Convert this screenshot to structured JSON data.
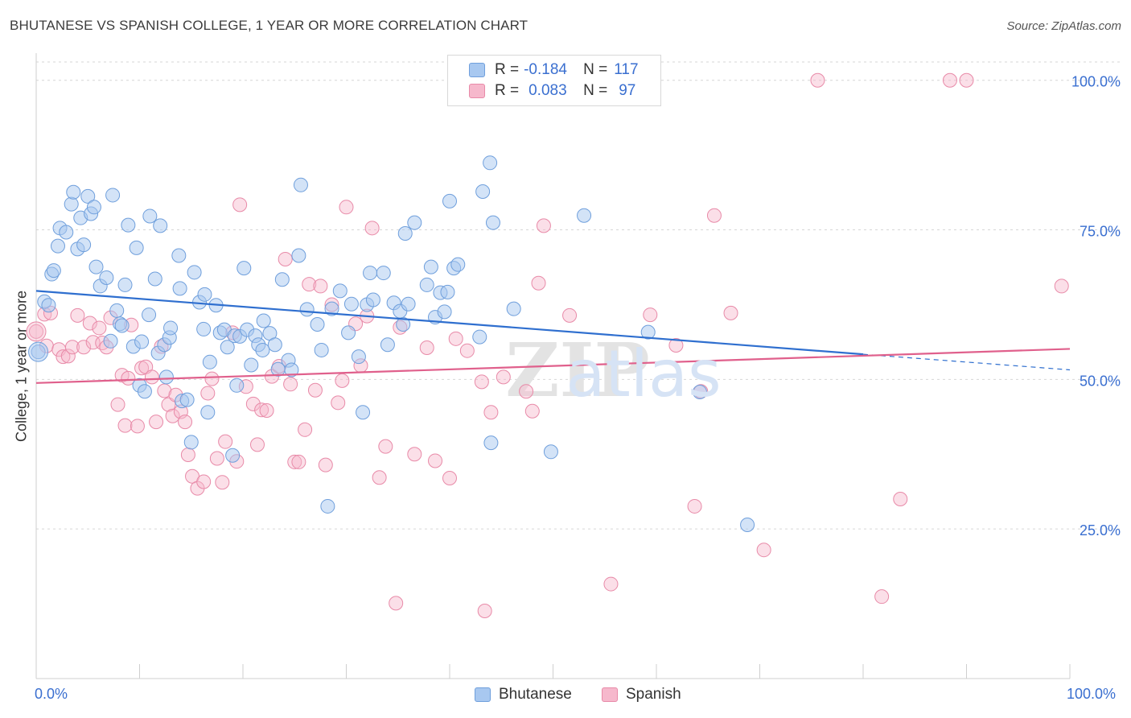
{
  "title": "BHUTANESE VS SPANISH COLLEGE, 1 YEAR OR MORE CORRELATION CHART",
  "source": "Source: ZipAtlas.com",
  "watermark": "ZIPatlas",
  "colors": {
    "blue_fill": "#a8c8f0",
    "blue_stroke": "#6f9fdc",
    "blue_line": "#2f6fcf",
    "pink_fill": "#f6b8cc",
    "pink_stroke": "#e88aa8",
    "pink_line": "#e0608c",
    "axis_text": "#3a6fd0",
    "grid": "#d6d6d6"
  },
  "legend_top": {
    "rows": [
      {
        "r_label": "R =",
        "r_value": "-0.184",
        "n_label": "N =",
        "n_value": "117"
      },
      {
        "r_label": "R =",
        "r_value": "0.083",
        "n_label": "N =",
        "n_value": "97"
      }
    ]
  },
  "legend_bottom": [
    "Bhutanese",
    "Spanish"
  ],
  "chart_data": {
    "type": "scatter",
    "title": "BHUTANESE VS SPANISH COLLEGE, 1 YEAR OR MORE CORRELATION CHART",
    "xlabel": "",
    "ylabel": "College, 1 year or more",
    "xlim": [
      0,
      100
    ],
    "ylim": [
      0,
      104
    ],
    "x_tick_labels": [
      "0.0%",
      "100.0%"
    ],
    "y_ticks": [
      25,
      50,
      75,
      100
    ],
    "y_tick_labels": [
      "25.0%",
      "50.0%",
      "75.0%",
      "100.0%"
    ],
    "grid": true,
    "legend_position": "top-center",
    "series": [
      {
        "name": "Bhutanese",
        "r": -0.184,
        "n": 117,
        "trend": {
          "x0": 0,
          "y0": 64.8,
          "x1": 80,
          "y1": 54.2,
          "dashed_to_x": 100,
          "dashed_to_y": 51.6
        },
        "points": [
          [
            0.2,
            54.6
          ],
          [
            0.8,
            63
          ],
          [
            1.2,
            62.4
          ],
          [
            1.5,
            67.6
          ],
          [
            1.7,
            68.2
          ],
          [
            2.1,
            72.3
          ],
          [
            2.3,
            75.3
          ],
          [
            2.9,
            74.6
          ],
          [
            3.4,
            79.3
          ],
          [
            3.6,
            81.3
          ],
          [
            4.0,
            71.8
          ],
          [
            4.3,
            77
          ],
          [
            4.6,
            72.5
          ],
          [
            5.0,
            80.6
          ],
          [
            5.3,
            77.7
          ],
          [
            5.6,
            78.8
          ],
          [
            5.8,
            68.8
          ],
          [
            6.2,
            65.6
          ],
          [
            6.8,
            67
          ],
          [
            7.2,
            56.4
          ],
          [
            7.4,
            80.8
          ],
          [
            7.8,
            61.5
          ],
          [
            8.1,
            59.3
          ],
          [
            8.3,
            59
          ],
          [
            8.6,
            65.8
          ],
          [
            8.9,
            75.8
          ],
          [
            9.4,
            55.5
          ],
          [
            9.7,
            72
          ],
          [
            10.0,
            49
          ],
          [
            10.2,
            56.3
          ],
          [
            10.5,
            48
          ],
          [
            10.9,
            60.8
          ],
          [
            11.0,
            77.3
          ],
          [
            11.5,
            66.8
          ],
          [
            11.8,
            54.4
          ],
          [
            12.0,
            75.7
          ],
          [
            12.4,
            55.8
          ],
          [
            12.6,
            50.4
          ],
          [
            12.9,
            57
          ],
          [
            13.0,
            58.6
          ],
          [
            13.8,
            70.7
          ],
          [
            13.9,
            65.2
          ],
          [
            14.1,
            46.4
          ],
          [
            14.6,
            46.6
          ],
          [
            15.0,
            39.5
          ],
          [
            15.3,
            67.9
          ],
          [
            15.8,
            62.9
          ],
          [
            16.2,
            58.4
          ],
          [
            16.3,
            64.2
          ],
          [
            16.6,
            44.5
          ],
          [
            16.8,
            52.9
          ],
          [
            17.4,
            62.4
          ],
          [
            17.8,
            57.8
          ],
          [
            18.2,
            58.3
          ],
          [
            18.5,
            55.4
          ],
          [
            19.0,
            37.3
          ],
          [
            19.2,
            57.3
          ],
          [
            19.4,
            49
          ],
          [
            19.7,
            57.2
          ],
          [
            20.1,
            68.6
          ],
          [
            20.4,
            58.3
          ],
          [
            20.8,
            52.4
          ],
          [
            21.2,
            57.3
          ],
          [
            21.5,
            55.8
          ],
          [
            21.9,
            54.9
          ],
          [
            22.0,
            59.8
          ],
          [
            22.6,
            57.7
          ],
          [
            23.1,
            55.8
          ],
          [
            23.4,
            51.7
          ],
          [
            23.8,
            66.7
          ],
          [
            24.4,
            53.2
          ],
          [
            24.7,
            51.6
          ],
          [
            25.4,
            70.7
          ],
          [
            25.6,
            82.5
          ],
          [
            26.2,
            61.7
          ],
          [
            27.2,
            59.2
          ],
          [
            27.6,
            54.9
          ],
          [
            28.2,
            28.8
          ],
          [
            28.6,
            61.8
          ],
          [
            29.4,
            64.8
          ],
          [
            30.2,
            57.8
          ],
          [
            30.5,
            62.6
          ],
          [
            31.2,
            53.8
          ],
          [
            31.6,
            44.5
          ],
          [
            32.0,
            62.5
          ],
          [
            32.3,
            67.8
          ],
          [
            32.6,
            63.3
          ],
          [
            33.6,
            67.8
          ],
          [
            34.0,
            55.8
          ],
          [
            34.6,
            62.8
          ],
          [
            35.2,
            61.4
          ],
          [
            35.5,
            59.2
          ],
          [
            35.7,
            74.4
          ],
          [
            36.0,
            62.6
          ],
          [
            36.6,
            76.2
          ],
          [
            37.8,
            65.8
          ],
          [
            38.2,
            68.8
          ],
          [
            38.6,
            60.4
          ],
          [
            39.1,
            64.5
          ],
          [
            39.5,
            61.3
          ],
          [
            39.8,
            64.6
          ],
          [
            40.0,
            79.8
          ],
          [
            40.4,
            68.6
          ],
          [
            40.8,
            69.2
          ],
          [
            42.9,
            57.1
          ],
          [
            43.2,
            81.4
          ],
          [
            43.9,
            86.2
          ],
          [
            44.0,
            39.4
          ],
          [
            44.2,
            76.2
          ],
          [
            46.2,
            61.8
          ],
          [
            49.8,
            37.9
          ],
          [
            53.0,
            77.4
          ],
          [
            59.2,
            57.9
          ],
          [
            64.2,
            47.9
          ],
          [
            68.8,
            25.7
          ]
        ]
      },
      {
        "name": "Spanish",
        "r": 0.083,
        "n": 97,
        "trend": {
          "x0": 0,
          "y0": 49.4,
          "x1": 100,
          "y1": 55.1
        },
        "points": [
          [
            0.0,
            58
          ],
          [
            0.8,
            60.9
          ],
          [
            1.0,
            55.6
          ],
          [
            1.4,
            61.1
          ],
          [
            2.2,
            55
          ],
          [
            2.6,
            53.8
          ],
          [
            3.1,
            53.9
          ],
          [
            3.5,
            55.4
          ],
          [
            4.0,
            60.7
          ],
          [
            4.6,
            55.4
          ],
          [
            5.2,
            59.4
          ],
          [
            5.5,
            56.2
          ],
          [
            6.1,
            58.6
          ],
          [
            6.4,
            56.1
          ],
          [
            6.8,
            55.4
          ],
          [
            7.2,
            60.3
          ],
          [
            7.9,
            45.8
          ],
          [
            8.3,
            50.7
          ],
          [
            8.6,
            42.3
          ],
          [
            8.9,
            50.2
          ],
          [
            9.2,
            59.1
          ],
          [
            9.8,
            42.2
          ],
          [
            10.2,
            51.9
          ],
          [
            10.6,
            52.1
          ],
          [
            11.2,
            50.4
          ],
          [
            11.6,
            42.9
          ],
          [
            12.1,
            55.5
          ],
          [
            12.4,
            48.1
          ],
          [
            12.8,
            45.8
          ],
          [
            13.2,
            43.9
          ],
          [
            13.5,
            47.4
          ],
          [
            14.0,
            44.6
          ],
          [
            14.4,
            42.9
          ],
          [
            14.7,
            37.4
          ],
          [
            15.1,
            33.8
          ],
          [
            15.6,
            31.8
          ],
          [
            16.2,
            32.9
          ],
          [
            16.6,
            47.7
          ],
          [
            17.0,
            50.1
          ],
          [
            17.5,
            36.8
          ],
          [
            18.0,
            32.8
          ],
          [
            18.3,
            39.6
          ],
          [
            19.0,
            57.8
          ],
          [
            19.4,
            36.3
          ],
          [
            19.7,
            79.2
          ],
          [
            20.3,
            48.8
          ],
          [
            21.0,
            45.9
          ],
          [
            21.4,
            39.1
          ],
          [
            21.8,
            44.9
          ],
          [
            22.3,
            44.8
          ],
          [
            22.8,
            50.5
          ],
          [
            23.5,
            52.2
          ],
          [
            24.1,
            70.1
          ],
          [
            24.6,
            49.2
          ],
          [
            25.0,
            36.2
          ],
          [
            25.4,
            36.2
          ],
          [
            26.0,
            41.6
          ],
          [
            26.4,
            65.9
          ],
          [
            27.0,
            48.2
          ],
          [
            27.5,
            65.6
          ],
          [
            28.0,
            35.7
          ],
          [
            28.6,
            62.5
          ],
          [
            29.2,
            46.1
          ],
          [
            29.6,
            49.8
          ],
          [
            30.0,
            78.8
          ],
          [
            30.9,
            59.3
          ],
          [
            31.4,
            52.3
          ],
          [
            32.0,
            60.6
          ],
          [
            32.5,
            75.3
          ],
          [
            33.2,
            33.6
          ],
          [
            33.8,
            38.8
          ],
          [
            34.8,
            12.6
          ],
          [
            35.2,
            58.7
          ],
          [
            36.6,
            37.5
          ],
          [
            37.8,
            55.3
          ],
          [
            38.6,
            36.4
          ],
          [
            40.0,
            33.5
          ],
          [
            40.6,
            56.8
          ],
          [
            41.7,
            54.8
          ],
          [
            43.1,
            49.6
          ],
          [
            43.4,
            11.3
          ],
          [
            44.0,
            44.5
          ],
          [
            45.2,
            50.4
          ],
          [
            47.4,
            48
          ],
          [
            48.0,
            44.7
          ],
          [
            48.6,
            66.1
          ],
          [
            49.1,
            75.7
          ],
          [
            51.6,
            60.7
          ],
          [
            55.6,
            15.8
          ],
          [
            59.4,
            60.8
          ],
          [
            61.9,
            55.7
          ],
          [
            63.7,
            28.8
          ],
          [
            64.3,
            48
          ],
          [
            65.6,
            77.4
          ],
          [
            67.2,
            61.1
          ],
          [
            70.4,
            21.5
          ],
          [
            75.6,
            100
          ],
          [
            81.8,
            13.7
          ],
          [
            83.6,
            30
          ],
          [
            88.4,
            100
          ],
          [
            90.0,
            100
          ],
          [
            99.2,
            65.6
          ]
        ]
      }
    ]
  }
}
